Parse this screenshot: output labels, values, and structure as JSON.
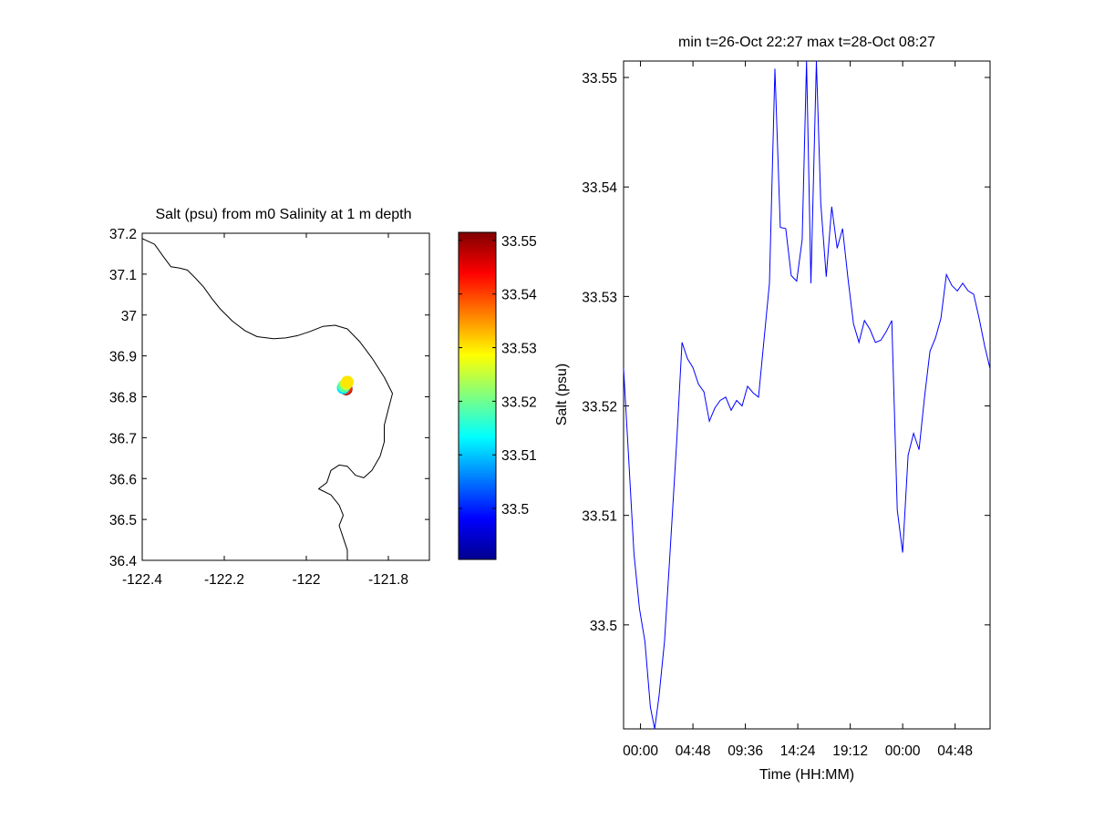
{
  "chart_data": [
    {
      "type": "scatter",
      "panel": "map",
      "title": "Salt (psu) from m0 Salinity at 1 m depth",
      "xlabel": "",
      "ylabel": "",
      "xlim": [
        -122.4,
        -121.7
      ],
      "ylim": [
        36.4,
        37.2
      ],
      "x_ticks": [
        -122.4,
        -122.2,
        -122,
        -121.8
      ],
      "y_ticks": [
        36.4,
        36.5,
        36.6,
        36.7,
        36.8,
        36.9,
        37,
        37.1,
        37.2
      ],
      "x_tick_labels": [
        "-122.4",
        "-122.2",
        "-122",
        "-121.8"
      ],
      "y_tick_labels": [
        "36.4",
        "36.5",
        "36.6",
        "36.7",
        "36.8",
        "36.9",
        "37",
        "37.1",
        "37.2"
      ],
      "grid": false,
      "coastline": [
        [
          -122.4,
          37.187
        ],
        [
          -122.37,
          37.173
        ],
        [
          -122.35,
          37.145
        ],
        [
          -122.33,
          37.118
        ],
        [
          -122.31,
          37.115
        ],
        [
          -122.29,
          37.11
        ],
        [
          -122.27,
          37.09
        ],
        [
          -122.25,
          37.068
        ],
        [
          -122.23,
          37.04
        ],
        [
          -122.21,
          37.015
        ],
        [
          -122.18,
          36.985
        ],
        [
          -122.15,
          36.962
        ],
        [
          -122.12,
          36.947
        ],
        [
          -122.08,
          36.942
        ],
        [
          -122.05,
          36.944
        ],
        [
          -122.02,
          36.95
        ],
        [
          -121.99,
          36.96
        ],
        [
          -121.96,
          36.972
        ],
        [
          -121.93,
          36.975
        ],
        [
          -121.9,
          36.966
        ],
        [
          -121.87,
          36.935
        ],
        [
          -121.84,
          36.895
        ],
        [
          -121.81,
          36.848
        ],
        [
          -121.79,
          36.808
        ],
        [
          -121.8,
          36.77
        ],
        [
          -121.81,
          36.73
        ],
        [
          -121.81,
          36.69
        ],
        [
          -121.82,
          36.655
        ],
        [
          -121.84,
          36.62
        ],
        [
          -121.86,
          36.602
        ],
        [
          -121.88,
          36.608
        ],
        [
          -121.9,
          36.63
        ],
        [
          -121.92,
          36.633
        ],
        [
          -121.94,
          36.62
        ],
        [
          -121.95,
          36.59
        ],
        [
          -121.97,
          36.575
        ],
        [
          -121.94,
          36.56
        ],
        [
          -121.92,
          36.535
        ],
        [
          -121.91,
          36.51
        ],
        [
          -121.92,
          36.485
        ],
        [
          -121.91,
          36.455
        ],
        [
          -121.9,
          36.425
        ],
        [
          -121.9,
          36.4
        ]
      ],
      "points": [
        {
          "x": -121.903,
          "y": 36.819,
          "color": "#8b0000"
        },
        {
          "x": -121.904,
          "y": 36.821,
          "color": "#ff2a00"
        },
        {
          "x": -121.91,
          "y": 36.822,
          "color": "#00e0ff"
        },
        {
          "x": -121.908,
          "y": 36.826,
          "color": "#5cff9e"
        },
        {
          "x": -121.903,
          "y": 36.832,
          "color": "#c6ff2f"
        },
        {
          "x": -121.9,
          "y": 36.836,
          "color": "#ffe600"
        }
      ],
      "colorbar": {
        "label": "",
        "range": [
          33.4905,
          33.5515
        ],
        "ticks": [
          33.5,
          33.51,
          33.52,
          33.53,
          33.54,
          33.55
        ],
        "tick_labels": [
          "33.5",
          "33.51",
          "33.52",
          "33.53",
          "33.54",
          "33.55"
        ],
        "colormap": "jet"
      }
    },
    {
      "type": "line",
      "panel": "timeseries",
      "title": "min t=26-Oct 22:27 max t=28-Oct 08:27",
      "xlabel": "Time (HH:MM)",
      "ylabel": "Salt (psu)",
      "x_unit": "hours since midnight 27-Oct (as printed on ticks)",
      "xlim": [
        -1.55,
        32.0
      ],
      "ylim": [
        33.4905,
        33.5515
      ],
      "x_ticks": [
        0,
        4.8,
        9.6,
        14.4,
        19.2,
        24,
        28.8
      ],
      "x_tick_labels": [
        "00:00",
        "04:48",
        "09:36",
        "14:24",
        "19:12",
        "00:00",
        "04:48"
      ],
      "y_ticks": [
        33.5,
        33.51,
        33.52,
        33.53,
        33.54,
        33.55
      ],
      "y_tick_labels": [
        "33.5",
        "33.51",
        "33.52",
        "33.53",
        "33.54",
        "33.55"
      ],
      "grid": false,
      "series": [
        {
          "color": "#0000ff",
          "x": [
            -1.55,
            -1.1,
            -0.6,
            -0.1,
            0.4,
            0.9,
            1.3,
            1.7,
            2.2,
            2.7,
            3.3,
            3.8,
            4.3,
            4.8,
            5.3,
            5.8,
            6.3,
            6.8,
            7.3,
            7.8,
            8.3,
            8.8,
            9.3,
            9.8,
            10.3,
            10.8,
            11.3,
            11.8,
            12.3,
            12.8,
            13.3,
            13.8,
            14.3,
            14.8,
            15.2,
            15.6,
            16.1,
            16.5,
            17.0,
            17.5,
            18.0,
            18.5,
            19.0,
            19.5,
            20.0,
            20.5,
            21.0,
            21.5,
            22.0,
            22.5,
            23.0,
            23.5,
            24.0,
            24.5,
            25.0,
            25.5,
            26.0,
            26.5,
            27.0,
            27.5,
            28.0,
            28.5,
            29.0,
            29.5,
            30.0,
            30.5,
            31.0,
            31.5,
            32.0
          ],
          "y": [
            33.5234,
            33.5155,
            33.5065,
            33.5015,
            33.4985,
            33.4925,
            33.4905,
            33.4935,
            33.4985,
            33.5065,
            33.5165,
            33.5258,
            33.5243,
            33.5235,
            33.522,
            33.5213,
            33.5186,
            33.5198,
            33.5205,
            33.5208,
            33.5196,
            33.5205,
            33.52,
            33.5218,
            33.5212,
            33.5208,
            33.526,
            33.5312,
            33.5508,
            33.5363,
            33.5362,
            33.5319,
            33.5314,
            33.5352,
            33.5515,
            33.5312,
            33.5515,
            33.5385,
            33.5318,
            33.5382,
            33.5344,
            33.5362,
            33.5316,
            33.5275,
            33.5258,
            33.5278,
            33.527,
            33.5258,
            33.526,
            33.5268,
            33.5278,
            33.5105,
            33.5066,
            33.5155,
            33.5175,
            33.516,
            33.5208,
            33.525,
            33.5262,
            33.528,
            33.532,
            33.531,
            33.5305,
            33.5312,
            33.5305,
            33.5302,
            33.528,
            33.5255,
            33.5234
          ]
        }
      ]
    }
  ]
}
